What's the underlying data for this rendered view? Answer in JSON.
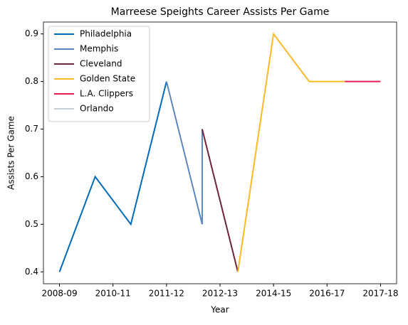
{
  "chart_data": {
    "type": "line",
    "title": "Marreese Speights Career Assists Per Game",
    "xlabel": "Year",
    "ylabel": "Assists Per Game",
    "xlim": [
      -0.45,
      9.45
    ],
    "xticks": [
      {
        "value": 0,
        "label": "2008-09"
      },
      {
        "value": 1.5,
        "label": "2010-11"
      },
      {
        "value": 3,
        "label": "2011-12"
      },
      {
        "value": 4.5,
        "label": "2012-13"
      },
      {
        "value": 6,
        "label": "2014-15"
      },
      {
        "value": 7.5,
        "label": "2016-17"
      },
      {
        "value": 9,
        "label": "2017-18"
      }
    ],
    "ylim": [
      0.375,
      0.925
    ],
    "yticks": [
      0.4,
      0.5,
      0.6,
      0.7,
      0.8,
      0.9
    ],
    "legend": "upper left",
    "series": [
      {
        "name": "Philadelphia",
        "color": "#006bb6",
        "x": [
          0,
          1,
          2,
          3
        ],
        "values": [
          0.4,
          0.6,
          0.5,
          0.8
        ]
      },
      {
        "name": "Memphis",
        "color": "#5d88bb",
        "x": [
          3,
          4,
          4
        ],
        "values": [
          0.8,
          0.5,
          0.7
        ]
      },
      {
        "name": "Cleveland",
        "color": "#6f263d",
        "x": [
          4,
          5
        ],
        "values": [
          0.7,
          0.4
        ]
      },
      {
        "name": "Golden State",
        "color": "#fdb927",
        "x": [
          5,
          6,
          7,
          8
        ],
        "values": [
          0.4,
          0.9,
          0.8,
          0.8
        ]
      },
      {
        "name": "L.A. Clippers",
        "color": "#e31d51",
        "x": [
          8,
          9
        ],
        "values": [
          0.8,
          0.8
        ]
      },
      {
        "name": "Orlando",
        "color": "#c4ced4",
        "x": [
          9
        ],
        "values": [
          0.8
        ]
      }
    ]
  }
}
